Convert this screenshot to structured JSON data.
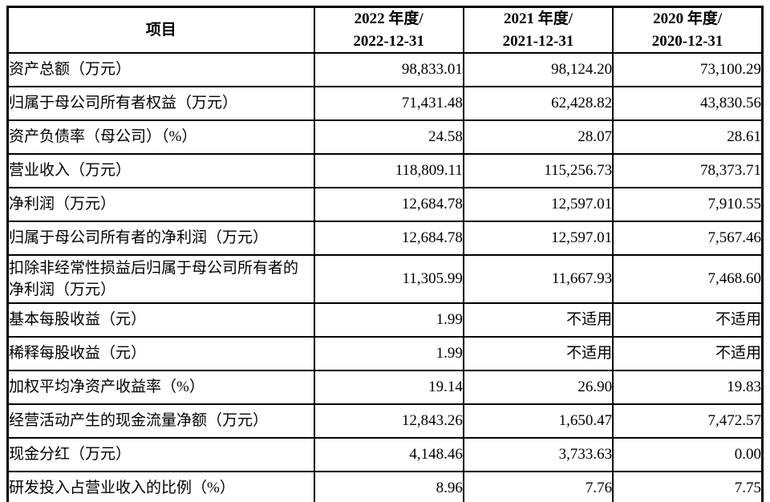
{
  "header": {
    "item": "项目",
    "periods": [
      {
        "line1": "2022 年度/",
        "line2": "2022-12-31"
      },
      {
        "line1": "2021 年度/",
        "line2": "2021-12-31"
      },
      {
        "line1": "2020 年度/",
        "line2": "2020-12-31"
      }
    ]
  },
  "rows": [
    {
      "label": "资产总额（万元）",
      "values": [
        "98,833.01",
        "98,124.20",
        "73,100.29"
      ]
    },
    {
      "label": "归属于母公司所有者权益（万元）",
      "values": [
        "71,431.48",
        "62,428.82",
        "43,830.56"
      ]
    },
    {
      "label": "资产负债率（母公司）（%）",
      "values": [
        "24.58",
        "28.07",
        "28.61"
      ]
    },
    {
      "label": "营业收入（万元）",
      "values": [
        "118,809.11",
        "115,256.73",
        "78,373.71"
      ]
    },
    {
      "label": "净利润（万元）",
      "values": [
        "12,684.78",
        "12,597.01",
        "7,910.55"
      ]
    },
    {
      "label": "归属于母公司所有者的净利润（万元）",
      "values": [
        "12,684.78",
        "12,597.01",
        "7,567.46"
      ]
    },
    {
      "label": "扣除非经常性损益后归属于母公司所有者的净利润（万元）",
      "values": [
        "11,305.99",
        "11,667.93",
        "7,468.60"
      ]
    },
    {
      "label": "基本每股收益（元）",
      "values": [
        "1.99",
        "不适用",
        "不适用"
      ]
    },
    {
      "label": "稀释每股收益（元）",
      "values": [
        "1.99",
        "不适用",
        "不适用"
      ]
    },
    {
      "label": "加权平均净资产收益率（%）",
      "values": [
        "19.14",
        "26.90",
        "19.83"
      ]
    },
    {
      "label": "经营活动产生的现金流量净额（万元）",
      "values": [
        "12,843.26",
        "1,650.47",
        "7,472.57"
      ]
    },
    {
      "label": "现金分红（万元）",
      "values": [
        "4,148.46",
        "3,733.63",
        "0.00"
      ]
    },
    {
      "label": "研发投入占营业收入的比例（%）",
      "values": [
        "8.96",
        "7.76",
        "7.75"
      ]
    }
  ]
}
